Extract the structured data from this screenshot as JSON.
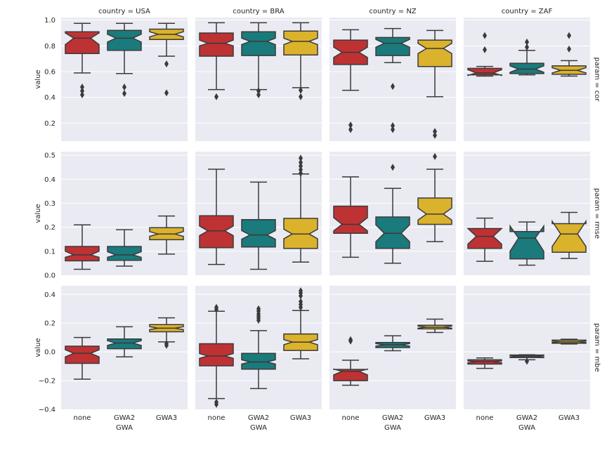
{
  "chart_data": {
    "type": "box",
    "title": "",
    "x_label": "GWA",
    "y_label": "value",
    "categories": [
      "none",
      "GWA2",
      "GWA3"
    ],
    "colors": {
      "none": "#be3234",
      "GWA2": "#1a7a7c",
      "GWA3": "#dbb22c"
    },
    "col_titles": [
      "country = USA",
      "country = BRA",
      "country = NZ",
      "country = ZAF"
    ],
    "row_titles": [
      "param = cor",
      "param = rmse",
      "param = mbe"
    ],
    "rows": [
      {
        "param": "cor",
        "ylim": [
          0.06,
          1.02
        ],
        "ticks": [
          0.2,
          0.4,
          0.6,
          0.8,
          1.0
        ],
        "tick_labels": [
          "0.2",
          "0.4",
          "0.6",
          "0.8",
          "1.0"
        ],
        "panels": [
          {
            "country": "USA",
            "boxes": [
              {
                "cat": "none",
                "q1": 0.74,
                "q3": 0.91,
                "med": 0.86,
                "nlo": 0.81,
                "nhi": 0.9,
                "wlo": 0.59,
                "whi": 0.975,
                "fliers": [
                  0.48,
                  0.45,
                  0.42
                ]
              },
              {
                "cat": "GWA2",
                "q1": 0.765,
                "q3": 0.92,
                "med": 0.86,
                "nlo": 0.83,
                "nhi": 0.89,
                "wlo": 0.585,
                "whi": 0.975,
                "fliers": [
                  0.48,
                  0.43
                ]
              },
              {
                "cat": "GWA3",
                "q1": 0.85,
                "q3": 0.93,
                "med": 0.89,
                "nlo": 0.87,
                "nhi": 0.91,
                "wlo": 0.72,
                "whi": 0.975,
                "fliers": [
                  0.66,
                  0.435
                ]
              }
            ]
          },
          {
            "country": "BRA",
            "boxes": [
              {
                "cat": "none",
                "q1": 0.72,
                "q3": 0.9,
                "med": 0.82,
                "nlo": 0.8,
                "nhi": 0.845,
                "wlo": 0.46,
                "whi": 0.98,
                "fliers": [
                  0.405
                ]
              },
              {
                "cat": "GWA2",
                "q1": 0.725,
                "q3": 0.91,
                "med": 0.835,
                "nlo": 0.81,
                "nhi": 0.86,
                "wlo": 0.46,
                "whi": 0.98,
                "fliers": [
                  0.45,
                  0.42
                ]
              },
              {
                "cat": "GWA3",
                "q1": 0.73,
                "q3": 0.915,
                "med": 0.835,
                "nlo": 0.81,
                "nhi": 0.86,
                "wlo": 0.475,
                "whi": 0.98,
                "fliers": [
                  0.455,
                  0.405
                ]
              }
            ]
          },
          {
            "country": "NZ",
            "boxes": [
              {
                "cat": "none",
                "q1": 0.655,
                "q3": 0.845,
                "med": 0.75,
                "nlo": 0.71,
                "nhi": 0.79,
                "wlo": 0.455,
                "whi": 0.925,
                "fliers": [
                  0.185,
                  0.15
                ]
              },
              {
                "cat": "GWA2",
                "q1": 0.725,
                "q3": 0.865,
                "med": 0.82,
                "nlo": 0.79,
                "nhi": 0.85,
                "wlo": 0.67,
                "whi": 0.935,
                "fliers": [
                  0.485,
                  0.18,
                  0.15
                ]
              },
              {
                "cat": "GWA3",
                "q1": 0.64,
                "q3": 0.845,
                "med": 0.78,
                "nlo": 0.74,
                "nhi": 0.82,
                "wlo": 0.405,
                "whi": 0.92,
                "fliers": [
                  0.135,
                  0.105
                ]
              }
            ]
          },
          {
            "country": "ZAF",
            "boxes": [
              {
                "cat": "none",
                "q1": 0.575,
                "q3": 0.625,
                "med": 0.59,
                "nlo": 0.57,
                "nhi": 0.615,
                "wlo": 0.565,
                "whi": 0.64,
                "fliers": [
                  0.88,
                  0.77
                ]
              },
              {
                "cat": "GWA2",
                "q1": 0.585,
                "q3": 0.665,
                "med": 0.62,
                "nlo": 0.595,
                "nhi": 0.645,
                "wlo": 0.575,
                "whi": 0.765,
                "fliers": [
                  0.83,
                  0.79
                ]
              },
              {
                "cat": "GWA3",
                "q1": 0.58,
                "q3": 0.645,
                "med": 0.61,
                "nlo": 0.59,
                "nhi": 0.63,
                "wlo": 0.565,
                "whi": 0.685,
                "fliers": [
                  0.88,
                  0.775
                ]
              }
            ]
          }
        ]
      },
      {
        "param": "rmse",
        "ylim": [
          0.0,
          0.515
        ],
        "ticks": [
          0.0,
          0.1,
          0.2,
          0.3,
          0.4,
          0.5
        ],
        "tick_labels": [
          "0.0",
          "0.1",
          "0.2",
          "0.3",
          "0.4",
          "0.5"
        ],
        "panels": [
          {
            "country": "USA",
            "boxes": [
              {
                "cat": "none",
                "q1": 0.06,
                "q3": 0.12,
                "med": 0.085,
                "nlo": 0.075,
                "nhi": 0.1,
                "wlo": 0.025,
                "whi": 0.21,
                "fliers": []
              },
              {
                "cat": "GWA2",
                "q1": 0.062,
                "q3": 0.12,
                "med": 0.085,
                "nlo": 0.075,
                "nhi": 0.098,
                "wlo": 0.038,
                "whi": 0.19,
                "fliers": []
              },
              {
                "cat": "GWA3",
                "q1": 0.148,
                "q3": 0.198,
                "med": 0.172,
                "nlo": 0.162,
                "nhi": 0.182,
                "wlo": 0.088,
                "whi": 0.247,
                "fliers": []
              }
            ]
          },
          {
            "country": "BRA",
            "boxes": [
              {
                "cat": "none",
                "q1": 0.115,
                "q3": 0.248,
                "med": 0.185,
                "nlo": 0.165,
                "nhi": 0.205,
                "wlo": 0.045,
                "whi": 0.442,
                "fliers": []
              },
              {
                "cat": "GWA2",
                "q1": 0.118,
                "q3": 0.232,
                "med": 0.168,
                "nlo": 0.15,
                "nhi": 0.186,
                "wlo": 0.025,
                "whi": 0.388,
                "fliers": []
              },
              {
                "cat": "GWA3",
                "q1": 0.112,
                "q3": 0.237,
                "med": 0.172,
                "nlo": 0.152,
                "nhi": 0.192,
                "wlo": 0.055,
                "whi": 0.422,
                "fliers": [
                  0.488,
                  0.47,
                  0.455,
                  0.44,
                  0.425
                ]
              }
            ]
          },
          {
            "country": "NZ",
            "boxes": [
              {
                "cat": "none",
                "q1": 0.175,
                "q3": 0.288,
                "med": 0.212,
                "nlo": 0.185,
                "nhi": 0.24,
                "wlo": 0.075,
                "whi": 0.41,
                "fliers": []
              },
              {
                "cat": "GWA2",
                "q1": 0.112,
                "q3": 0.243,
                "med": 0.175,
                "nlo": 0.14,
                "nhi": 0.21,
                "wlo": 0.05,
                "whi": 0.362,
                "fliers": [
                  0.45
                ]
              },
              {
                "cat": "GWA3",
                "q1": 0.212,
                "q3": 0.322,
                "med": 0.255,
                "nlo": 0.23,
                "nhi": 0.28,
                "wlo": 0.14,
                "whi": 0.442,
                "fliers": [
                  0.495
                ]
              }
            ]
          },
          {
            "country": "ZAF",
            "boxes": [
              {
                "cat": "none",
                "q1": 0.112,
                "q3": 0.195,
                "med": 0.162,
                "nlo": 0.13,
                "nhi": 0.195,
                "wlo": 0.058,
                "whi": 0.238,
                "fliers": []
              },
              {
                "cat": "GWA2",
                "q1": 0.068,
                "q3": 0.182,
                "med": 0.155,
                "nlo": 0.1,
                "nhi": 0.205,
                "wlo": 0.042,
                "whi": 0.222,
                "fliers": []
              },
              {
                "cat": "GWA3",
                "q1": 0.096,
                "q3": 0.215,
                "med": 0.172,
                "nlo": 0.12,
                "nhi": 0.225,
                "wlo": 0.07,
                "whi": 0.262,
                "fliers": []
              }
            ]
          }
        ]
      },
      {
        "param": "mbe",
        "ylim": [
          -0.4,
          0.46
        ],
        "ticks": [
          -0.4,
          -0.2,
          0.0,
          0.2,
          0.4
        ],
        "tick_labels": [
          "−0.4",
          "−0.2",
          "0.0",
          "0.2",
          "0.4"
        ],
        "panels": [
          {
            "country": "USA",
            "boxes": [
              {
                "cat": "none",
                "q1": -0.08,
                "q3": 0.04,
                "med": -0.01,
                "nlo": -0.035,
                "nhi": 0.015,
                "wlo": -0.19,
                "whi": 0.1,
                "fliers": []
              },
              {
                "cat": "GWA2",
                "q1": 0.022,
                "q3": 0.09,
                "med": 0.062,
                "nlo": 0.045,
                "nhi": 0.078,
                "wlo": -0.035,
                "whi": 0.175,
                "fliers": []
              },
              {
                "cat": "GWA3",
                "q1": 0.14,
                "q3": 0.19,
                "med": 0.165,
                "nlo": 0.155,
                "nhi": 0.175,
                "wlo": 0.07,
                "whi": 0.237,
                "fliers": [
                  0.058,
                  0.045
                ]
              }
            ]
          },
          {
            "country": "BRA",
            "boxes": [
              {
                "cat": "none",
                "q1": -0.097,
                "q3": 0.057,
                "med": -0.028,
                "nlo": -0.045,
                "nhi": -0.012,
                "wlo": -0.325,
                "whi": 0.283,
                "fliers": [
                  0.31,
                  0.295,
                  -0.35,
                  -0.365
                ]
              },
              {
                "cat": "GWA2",
                "q1": -0.12,
                "q3": -0.01,
                "med": -0.07,
                "nlo": -0.085,
                "nhi": -0.055,
                "wlo": -0.255,
                "whi": 0.148,
                "fliers": [
                  0.3,
                  0.285,
                  0.265,
                  0.25,
                  0.235,
                  0.22
                ]
              },
              {
                "cat": "GWA3",
                "q1": 0.01,
                "q3": 0.125,
                "med": 0.068,
                "nlo": 0.05,
                "nhi": 0.085,
                "wlo": -0.048,
                "whi": 0.288,
                "fliers": [
                  0.425,
                  0.41,
                  0.39,
                  0.35,
                  0.33,
                  0.31
                ]
              }
            ]
          },
          {
            "country": "NZ",
            "boxes": [
              {
                "cat": "none",
                "q1": -0.2,
                "q3": -0.122,
                "med": -0.135,
                "nlo": -0.16,
                "nhi": -0.12,
                "wlo": -0.232,
                "whi": -0.058,
                "fliers": [
                  0.085,
                  0.075
                ]
              },
              {
                "cat": "GWA2",
                "q1": 0.03,
                "q3": 0.065,
                "med": 0.05,
                "nlo": 0.04,
                "nhi": 0.058,
                "wlo": 0.008,
                "whi": 0.112,
                "fliers": []
              },
              {
                "cat": "GWA3",
                "q1": 0.16,
                "q3": 0.185,
                "med": 0.172,
                "nlo": 0.165,
                "nhi": 0.18,
                "wlo": 0.135,
                "whi": 0.228,
                "fliers": []
              }
            ]
          },
          {
            "country": "ZAF",
            "boxes": [
              {
                "cat": "none",
                "q1": -0.085,
                "q3": -0.055,
                "med": -0.068,
                "nlo": -0.075,
                "nhi": -0.062,
                "wlo": -0.115,
                "whi": -0.042,
                "fliers": []
              },
              {
                "cat": "GWA2",
                "q1": -0.04,
                "q3": -0.022,
                "med": -0.03,
                "nlo": -0.035,
                "nhi": -0.025,
                "wlo": -0.055,
                "whi": -0.02,
                "fliers": [
                  -0.065
                ]
              },
              {
                "cat": "GWA3",
                "q1": 0.06,
                "q3": 0.082,
                "med": 0.07,
                "nlo": 0.065,
                "nhi": 0.075,
                "wlo": 0.055,
                "whi": 0.088,
                "fliers": []
              }
            ]
          }
        ]
      }
    ]
  }
}
